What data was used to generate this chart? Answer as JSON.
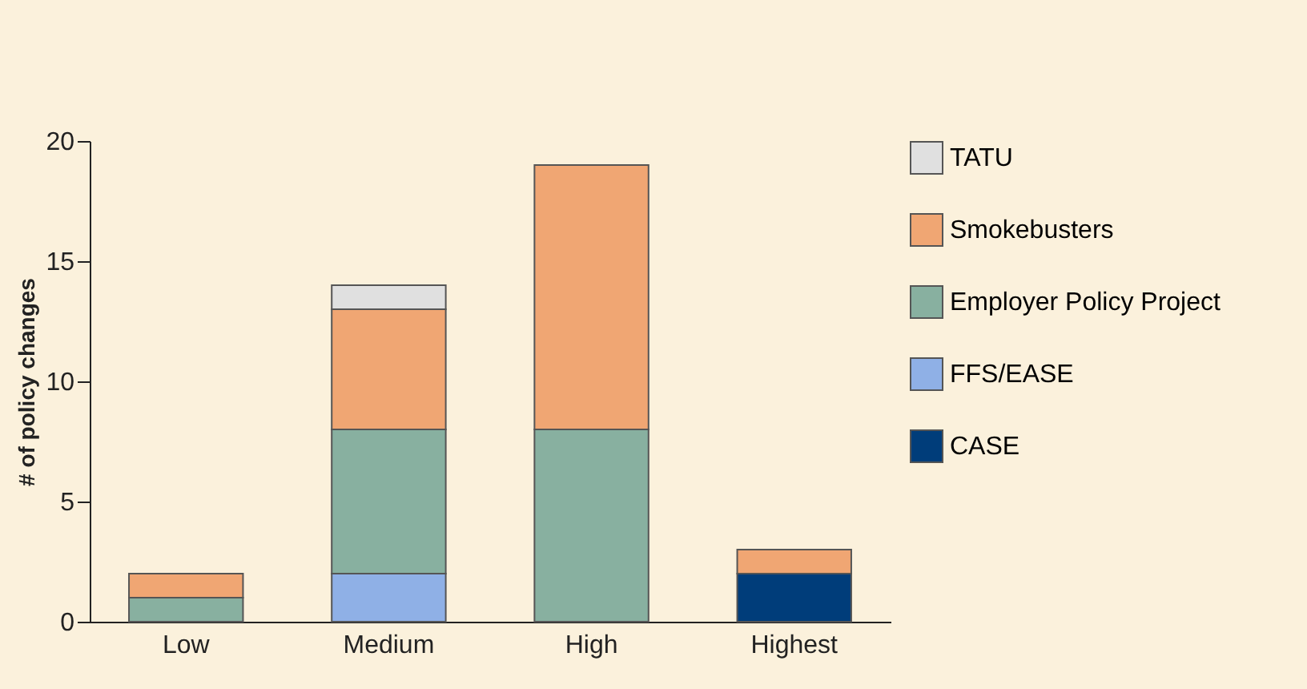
{
  "chart_data": {
    "type": "bar",
    "stacked": true,
    "ylabel": "# of policy changes",
    "categories": [
      "Low",
      "Medium",
      "High",
      "Highest"
    ],
    "series": [
      {
        "name": "CASE",
        "color": "#003d7a",
        "values": [
          null,
          null,
          null,
          2
        ]
      },
      {
        "name": "FFS/EASE",
        "color": "#8fb0e6",
        "values": [
          null,
          2,
          null,
          null
        ]
      },
      {
        "name": "Employer Policy Project",
        "color": "#88b0a0",
        "values": [
          1,
          6,
          8,
          null
        ]
      },
      {
        "name": "Smokebusters",
        "color": "#f0a673",
        "values": [
          1,
          5,
          11,
          1
        ]
      },
      {
        "name": "TATU",
        "color": "#e0e0e0",
        "values": [
          null,
          1,
          null,
          null
        ]
      }
    ],
    "ylim": [
      0,
      20
    ],
    "yticks": [
      0,
      5,
      10,
      15,
      20
    ],
    "grid": false,
    "legend": "right"
  }
}
